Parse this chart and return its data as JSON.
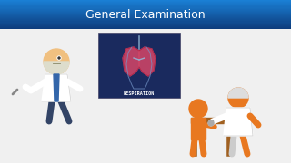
{
  "title": "General Examination",
  "title_color": "#ffffff",
  "title_bg_top": "#1a7fd4",
  "title_bg_bottom": "#0d3a7a",
  "slide_bg_color": "#f0f0f0",
  "respiration_label": "RESPIRATION",
  "respiration_box_color": "#1a2a5e",
  "respiration_text_color": "#ffffff",
  "title_fontsize": 9,
  "label_fontsize": 4.5,
  "orange": "#e87820",
  "dark_orange": "#c05a00",
  "white": "#ffffff",
  "skin": "#f0c080",
  "brown": "#a06020",
  "gray_blue": "#8898b8"
}
